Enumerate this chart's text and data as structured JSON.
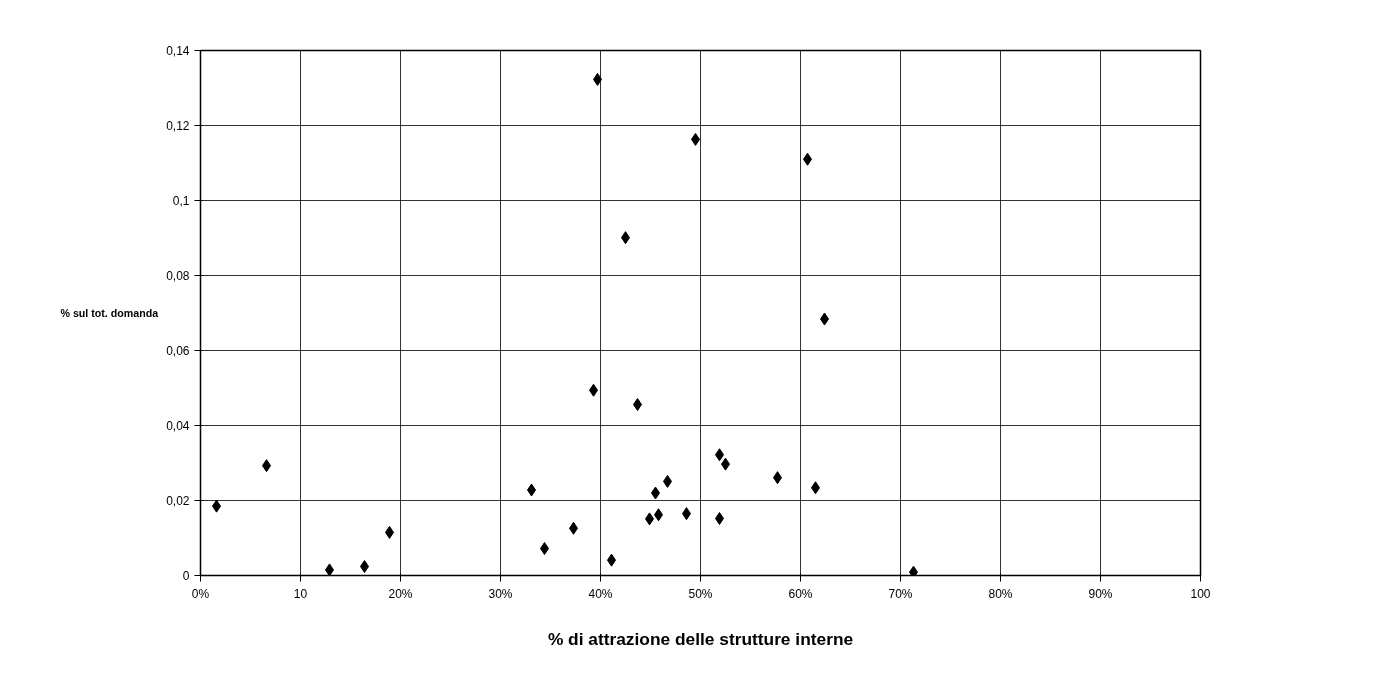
{
  "chart_data": {
    "type": "scatter",
    "xlabel": "% di attrazione delle strutture interne",
    "ylabel": "% sul tot. domanda",
    "x": [
      1.6,
      6.6,
      12.9,
      16.4,
      18.9,
      33.1,
      34.4,
      37.3,
      39.3,
      41.1,
      43.7,
      44.9,
      45.5,
      45.8,
      46.7,
      39.7,
      42.5,
      49.5,
      60.7,
      62.4,
      51.9,
      52.5,
      57.7,
      61.5,
      48.6,
      51.9,
      71.3
    ],
    "series": [
      {
        "color": "#000000",
        "values": [
          0.0185,
          0.0293,
          0.0015,
          0.0024,
          0.0115,
          0.0228,
          0.0072,
          0.0126,
          0.0494,
          0.0041,
          0.0456,
          0.0151,
          0.022,
          0.0162,
          0.0251,
          0.1323,
          0.0901,
          0.1163,
          0.111,
          0.0684,
          0.0322,
          0.0297,
          0.0261,
          0.0234,
          0.0165,
          0.0152,
          0.0009
        ]
      }
    ],
    "marker": "diamond",
    "grid": true,
    "xlim": [
      0,
      100
    ],
    "xticks": [
      {
        "value": 0,
        "label": "0%"
      },
      10,
      {
        "value": 20,
        "label": "20%"
      },
      {
        "value": 30,
        "label": "30%"
      },
      {
        "value": 40,
        "label": "40%"
      },
      {
        "value": 50,
        "label": "50%"
      },
      {
        "value": 60,
        "label": "60%"
      },
      {
        "value": 70,
        "label": "70%"
      },
      {
        "value": 80,
        "label": "80%"
      },
      {
        "value": 90,
        "label": "90%"
      },
      100
    ],
    "ylim": [
      0,
      0.14
    ],
    "yticks": [
      0,
      {
        "value": 0.02,
        "label": "0,02"
      },
      {
        "value": 0.04,
        "label": "0,04"
      },
      {
        "value": 0.06,
        "label": "0,06"
      },
      {
        "value": 0.08,
        "label": "0,08"
      },
      {
        "value": 0.1,
        "label": "0,1"
      },
      {
        "value": 0.12,
        "label": "0,12"
      },
      {
        "value": 0.14,
        "label": "0,14"
      }
    ]
  }
}
